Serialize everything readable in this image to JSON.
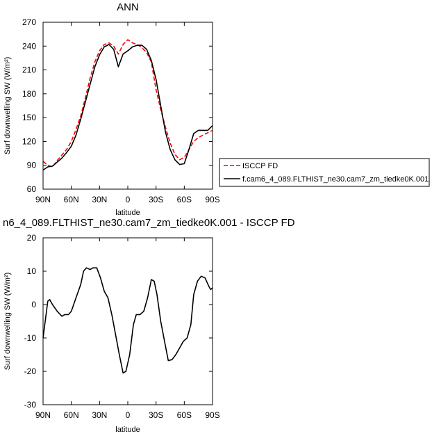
{
  "colors": {
    "isccp": "#ff0000",
    "model": "#000000"
  },
  "chart_data": [
    {
      "type": "line",
      "title": "ANN",
      "xlabel": "latitude",
      "ylabel": "Surf downwelling SW (W/m²)",
      "ylim": [
        60,
        270
      ],
      "xlim": [
        90,
        -90
      ],
      "yticks": [
        60,
        90,
        120,
        150,
        180,
        210,
        240,
        270
      ],
      "xtick_values": [
        90,
        60,
        30,
        0,
        -30,
        -60,
        -90
      ],
      "xtick_labels": [
        "90N",
        "60N",
        "30N",
        "0",
        "30S",
        "60S",
        "90S"
      ],
      "legend": {
        "placement": "right",
        "entries": [
          "ISCCP FD",
          "f.cam6_4_089.FLTHIST_ne30.cam7_zm_tiedke0K.001"
        ]
      },
      "series": [
        {
          "name": "ISCCP FD",
          "style": "dashed",
          "x": [
            90,
            85,
            80,
            75,
            70,
            65,
            60,
            55,
            50,
            45,
            40,
            35,
            30,
            25,
            20,
            15,
            10,
            5,
            0,
            -5,
            -10,
            -15,
            -20,
            -25,
            -30,
            -35,
            -40,
            -45,
            -50,
            -55,
            -60,
            -65,
            -70,
            -75,
            -80,
            -85,
            -90
          ],
          "y": [
            95,
            90,
            88,
            96,
            103,
            110,
            120,
            135,
            152,
            175,
            200,
            220,
            234,
            242,
            244,
            240,
            230,
            242,
            248,
            244,
            242,
            238,
            232,
            220,
            185,
            160,
            138,
            118,
            104,
            97,
            100,
            110,
            120,
            125,
            128,
            131,
            134
          ]
        },
        {
          "name": "f.cam6_4_089.FLTHIST_ne30.cam7_zm_tiedke0K.001",
          "style": "solid",
          "x": [
            90,
            85,
            80,
            75,
            70,
            65,
            60,
            55,
            50,
            45,
            40,
            35,
            30,
            25,
            20,
            15,
            10,
            5,
            0,
            -5,
            -10,
            -15,
            -20,
            -25,
            -30,
            -35,
            -40,
            -45,
            -50,
            -55,
            -60,
            -65,
            -70,
            -75,
            -80,
            -85,
            -90
          ],
          "y": [
            84,
            88,
            89,
            94,
            99,
            106,
            114,
            128,
            148,
            170,
            192,
            214,
            229,
            239,
            242,
            236,
            214,
            230,
            234,
            239,
            241,
            241,
            236,
            222,
            198,
            165,
            132,
            110,
            97,
            91,
            92,
            110,
            130,
            134,
            134,
            134,
            140
          ]
        }
      ]
    },
    {
      "type": "line",
      "title": "n6_4_089.FLTHIST_ne30.cam7_zm_tiedke0K.001 - ISCCP FD",
      "xlabel": "latitude",
      "ylabel": "Surf downwelling SW (W/m²)",
      "ylim": [
        -30,
        20
      ],
      "xlim": [
        90,
        -90
      ],
      "yticks": [
        -30,
        -20,
        -10,
        0,
        10,
        20
      ],
      "xtick_values": [
        90,
        60,
        30,
        0,
        -30,
        -60,
        -90
      ],
      "xtick_labels": [
        "90N",
        "60N",
        "30N",
        "0",
        "30S",
        "60S",
        "90S"
      ],
      "series": [
        {
          "style": "solid",
          "x": [
            90,
            85,
            83,
            80,
            75,
            70,
            67,
            63,
            60,
            55,
            50,
            47,
            44,
            40,
            37,
            33,
            29,
            25,
            21,
            17,
            13,
            9,
            5,
            2,
            -2,
            -6,
            -9,
            -13,
            -17,
            -21,
            -25,
            -28,
            -31,
            -35,
            -39,
            -43,
            -47,
            -51,
            -55,
            -59,
            -63,
            -67,
            -70,
            -74,
            -78,
            -82,
            -86,
            -88,
            -90
          ],
          "y": [
            -10,
            1,
            1.5,
            0,
            -2,
            -3.5,
            -3,
            -3,
            -2,
            2,
            6,
            10,
            11,
            10.5,
            11,
            11,
            8,
            4,
            2,
            -3,
            -9,
            -15,
            -20.5,
            -20,
            -15,
            -6,
            -3,
            -3,
            -2,
            2,
            7.5,
            7,
            3,
            -5,
            -11,
            -16.8,
            -16.5,
            -15,
            -13,
            -11,
            -10,
            -6,
            3,
            7,
            8.5,
            8,
            5.5,
            4.5,
            5
          ]
        }
      ]
    }
  ]
}
